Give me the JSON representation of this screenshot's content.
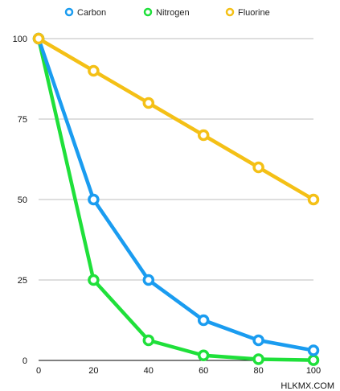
{
  "chart_data": {
    "type": "line",
    "x": [
      0,
      20,
      40,
      60,
      80,
      100
    ],
    "series": [
      {
        "name": "Carbon",
        "color": "#1a9cf0",
        "values": [
          100,
          50,
          25,
          12.5,
          6.25,
          3.125
        ]
      },
      {
        "name": "Nitrogen",
        "color": "#1fe03a",
        "values": [
          100,
          25,
          6.25,
          1.56,
          0.39,
          0.1
        ]
      },
      {
        "name": "Fluorine",
        "color": "#f4c016",
        "values": [
          100,
          90,
          80,
          70,
          60,
          50
        ]
      }
    ],
    "x_ticks": [
      "0",
      "20",
      "40",
      "60",
      "80",
      "100"
    ],
    "y_ticks": [
      "0",
      "25",
      "50",
      "75",
      "100"
    ],
    "xlim": [
      0,
      100
    ],
    "ylim": [
      0,
      100
    ],
    "grid": "horizontal",
    "legend": "top",
    "title": "",
    "xlabel": "",
    "ylabel": ""
  },
  "watermark": "HLKMX.COM"
}
